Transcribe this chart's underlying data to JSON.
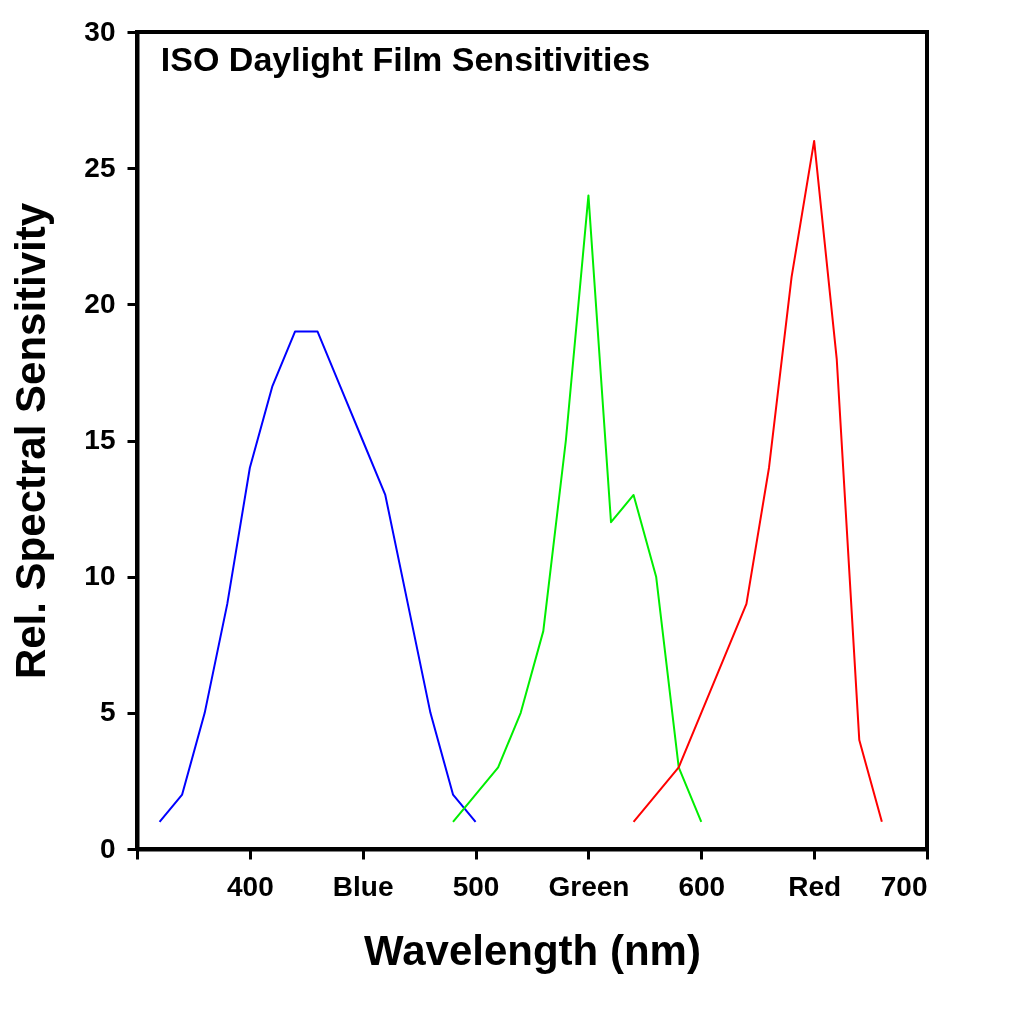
{
  "chart_data": {
    "type": "line",
    "title": "ISO Daylight Film Sensitivities",
    "xlabel": "Wavelength (nm)",
    "ylabel": "Rel. Spectral Sensitivity",
    "xlim": [
      350,
      700
    ],
    "xticks": [
      {
        "value": 350,
        "label": null
      },
      400,
      {
        "value": 450,
        "label": "Blue"
      },
      500,
      {
        "value": 550,
        "label": "Green"
      },
      600,
      {
        "value": 650,
        "label": "Red"
      },
      700
    ],
    "ylim": [
      0,
      30
    ],
    "yticks": [
      0,
      5,
      10,
      15,
      20,
      25,
      30
    ],
    "grid": false,
    "marker": "none",
    "line_style": "solid",
    "series": [
      {
        "color": "#0000ff",
        "x": [
          360,
          370,
          380,
          390,
          400,
          410,
          420,
          430,
          440,
          450,
          460,
          470,
          480,
          490,
          500
        ],
        "values": [
          1,
          2,
          5,
          9,
          14,
          17,
          19,
          19,
          17,
          15,
          13,
          9,
          5,
          2,
          1
        ]
      },
      {
        "color": "#00ee00",
        "x": [
          490,
          500,
          510,
          520,
          530,
          540,
          550,
          560,
          570,
          580,
          590,
          600
        ],
        "values": [
          1,
          2,
          3,
          5,
          8,
          15,
          24,
          12,
          13,
          10,
          3,
          1
        ]
      },
      {
        "color": "#ff0000",
        "x": [
          570,
          580,
          590,
          600,
          610,
          620,
          630,
          640,
          650,
          660,
          670,
          680
        ],
        "values": [
          1,
          2,
          3,
          5,
          7,
          9,
          14,
          21,
          26,
          18,
          4,
          1
        ]
      }
    ]
  }
}
